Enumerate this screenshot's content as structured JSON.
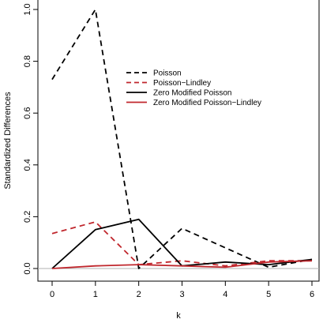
{
  "chart_data": {
    "type": "line",
    "title": "",
    "xlabel": "k",
    "ylabel": "Standardized Differences",
    "x": [
      0,
      1,
      2,
      3,
      4,
      5,
      6
    ],
    "xlim": [
      0,
      6
    ],
    "ylim": [
      0,
      1.0
    ],
    "xticks": [
      "0",
      "1",
      "2",
      "3",
      "4",
      "5",
      "6"
    ],
    "yticks": [
      "0.0",
      "0.2",
      "0.4",
      "0.6",
      "0.8",
      "1.0"
    ],
    "grid": false,
    "legend_position": "upper-middle",
    "reference_line": {
      "y": 0,
      "color": "#b0b0b0"
    },
    "series": [
      {
        "name": "Poisson",
        "color": "#000000",
        "dash": "dashed",
        "values": [
          0.73,
          1.0,
          0.0,
          0.155,
          0.08,
          0.005,
          0.035
        ]
      },
      {
        "name": "Poisson−Lindley",
        "color": "#c0272d",
        "dash": "dashed",
        "values": [
          0.135,
          0.18,
          0.015,
          0.03,
          0.01,
          0.03,
          0.03
        ]
      },
      {
        "name": "Zero Modified Poisson",
        "color": "#000000",
        "dash": "solid",
        "values": [
          0.0,
          0.15,
          0.19,
          0.01,
          0.025,
          0.015,
          0.035
        ]
      },
      {
        "name": "Zero Modified Poisson−Lindley",
        "color": "#c0272d",
        "dash": "solid",
        "values": [
          0.0,
          0.01,
          0.015,
          0.01,
          0.005,
          0.025,
          0.03
        ]
      }
    ]
  }
}
